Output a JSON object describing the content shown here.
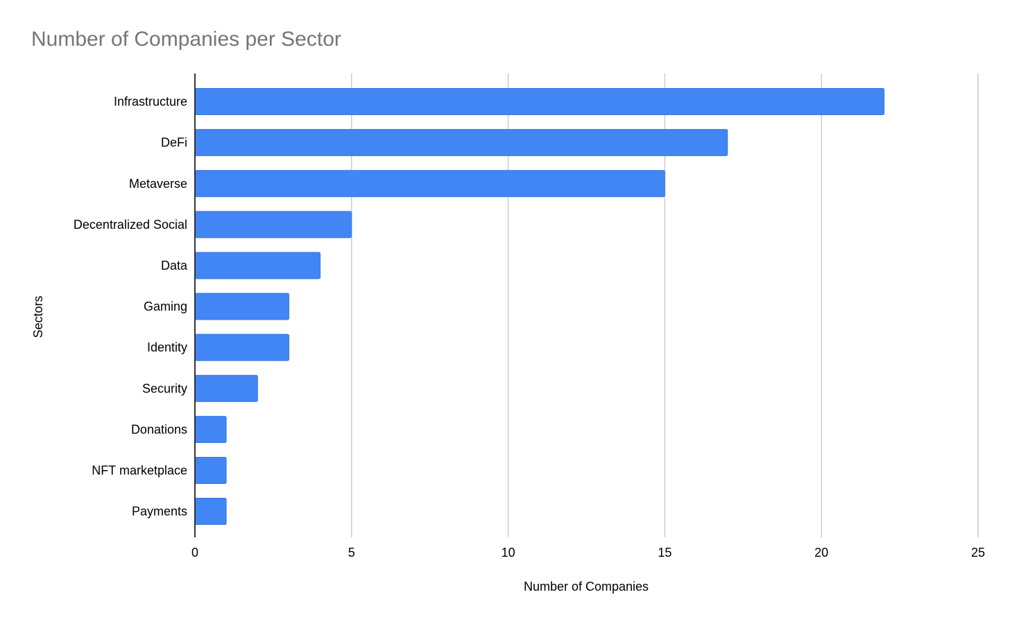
{
  "chart_data": {
    "type": "bar",
    "orientation": "horizontal",
    "title": "Number of Companies per Sector",
    "xlabel": "Number of Companies",
    "ylabel": "Sectors",
    "categories": [
      "Infrastructure",
      "DeFi",
      "Metaverse",
      "Decentralized Social",
      "Data",
      "Gaming",
      "Identity",
      "Security",
      "Donations",
      "NFT marketplace",
      "Payments"
    ],
    "values": [
      22,
      17,
      15,
      5,
      4,
      3,
      3,
      2,
      1,
      1,
      1
    ],
    "xlim": [
      0,
      25
    ],
    "xticks": [
      "0",
      "5",
      "10",
      "15",
      "20",
      "25"
    ],
    "grid": true,
    "legend": "none",
    "bar_color": "#4285f4",
    "grid_color": "#cccccc"
  }
}
